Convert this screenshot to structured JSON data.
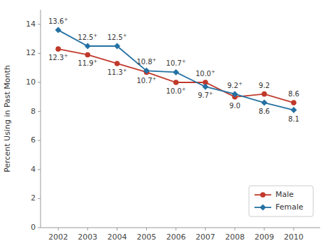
{
  "chart_data": {
    "type": "line",
    "y_label": "Percent Using in Past Month",
    "x": [
      2002,
      2003,
      2004,
      2005,
      2006,
      2007,
      2008,
      2009,
      2010
    ],
    "series": [
      {
        "name": "Male",
        "color": "#c0392b",
        "marker": "circle",
        "values": [
          12.3,
          11.9,
          11.3,
          10.7,
          10.0,
          10.0,
          9.0,
          9.2,
          8.6
        ],
        "value_labels": [
          "12.3+",
          "11.9+",
          "11.3+",
          "10.7+",
          "10.0+",
          "10.0+",
          "9.0",
          "9.2",
          "8.6"
        ]
      },
      {
        "name": "Female",
        "color": "#2471a3",
        "marker": "diamond",
        "values": [
          13.6,
          12.5,
          12.5,
          10.8,
          10.7,
          9.7,
          9.2,
          8.6,
          8.1
        ],
        "value_labels": [
          "13.6+",
          "12.5+",
          "12.5+",
          "10.8+",
          "10.7+",
          "9.7+",
          "9.2+",
          "8.6",
          "8.1"
        ]
      }
    ],
    "xlim": [
      2001.4,
      2010.9
    ],
    "xticks": [
      2002,
      2003,
      2004,
      2005,
      2006,
      2007,
      2008,
      2009,
      2010
    ],
    "ylim": [
      0,
      15
    ],
    "yticks": [
      0,
      2,
      4,
      6,
      8,
      10,
      12,
      14
    ],
    "grid": false,
    "legend": "lower right",
    "data_labels": true
  }
}
